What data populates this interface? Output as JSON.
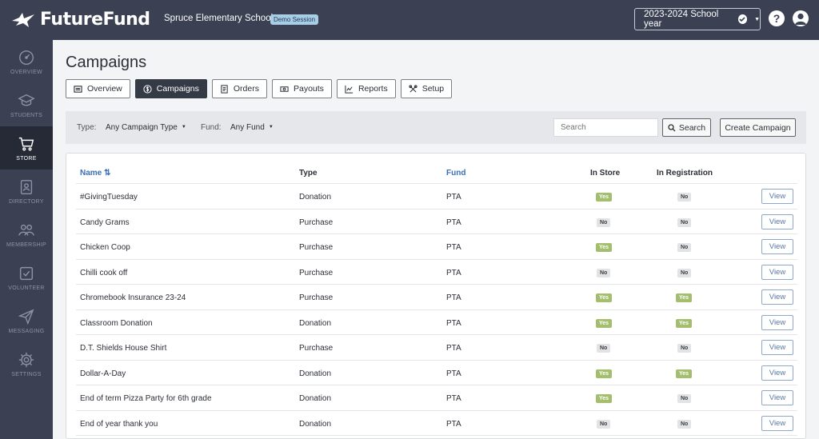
{
  "app": {
    "name": "FutureFund"
  },
  "header": {
    "school": "Spruce Elementary School",
    "demo_badge": "Demo Session",
    "year_select": "2023-2024 School year"
  },
  "sidebar": {
    "items": [
      {
        "label": "OVERVIEW",
        "icon": "gauge-icon"
      },
      {
        "label": "STUDENTS",
        "icon": "graduation-cap-icon"
      },
      {
        "label": "STORE",
        "icon": "cart-icon",
        "active": true
      },
      {
        "label": "DIRECTORY",
        "icon": "contact-card-icon"
      },
      {
        "label": "MEMBERSHIP",
        "icon": "people-icon"
      },
      {
        "label": "VOLUNTEER",
        "icon": "checkbox-icon"
      },
      {
        "label": "MESSAGING",
        "icon": "paper-plane-icon"
      },
      {
        "label": "SETTINGS",
        "icon": "gear-icon"
      }
    ]
  },
  "page": {
    "title": "Campaigns"
  },
  "tabs": [
    {
      "label": "Overview",
      "icon": "list-icon"
    },
    {
      "label": "Campaigns",
      "icon": "dollar-circle-icon",
      "active": true
    },
    {
      "label": "Orders",
      "icon": "document-icon"
    },
    {
      "label": "Payouts",
      "icon": "money-icon"
    },
    {
      "label": "Reports",
      "icon": "line-chart-icon"
    },
    {
      "label": "Setup",
      "icon": "tools-icon"
    }
  ],
  "filters": {
    "type_label": "Type:",
    "type_value": "Any Campaign Type",
    "fund_label": "Fund:",
    "fund_value": "Any Fund",
    "search_placeholder": "Search",
    "search_button": "Search",
    "create_button": "Create Campaign"
  },
  "table": {
    "headers": {
      "name": "Name",
      "type": "Type",
      "fund": "Fund",
      "in_store": "In Store",
      "in_registration": "In Registration"
    },
    "view_label": "View",
    "rows": [
      {
        "name": "#GivingTuesday",
        "type": "Donation",
        "fund": "PTA",
        "in_store": "Yes",
        "in_registration": "No"
      },
      {
        "name": "Candy Grams",
        "type": "Purchase",
        "fund": "PTA",
        "in_store": "No",
        "in_registration": "No"
      },
      {
        "name": "Chicken Coop",
        "type": "Purchase",
        "fund": "PTA",
        "in_store": "Yes",
        "in_registration": "No"
      },
      {
        "name": "Chilli cook off",
        "type": "Purchase",
        "fund": "PTA",
        "in_store": "No",
        "in_registration": "No"
      },
      {
        "name": "Chromebook Insurance 23-24",
        "type": "Purchase",
        "fund": "PTA",
        "in_store": "Yes",
        "in_registration": "Yes"
      },
      {
        "name": "Classroom Donation",
        "type": "Donation",
        "fund": "PTA",
        "in_store": "Yes",
        "in_registration": "Yes"
      },
      {
        "name": "D.T. Shields House Shirt",
        "type": "Purchase",
        "fund": "PTA",
        "in_store": "No",
        "in_registration": "No"
      },
      {
        "name": "Dollar-A-Day",
        "type": "Donation",
        "fund": "PTA",
        "in_store": "Yes",
        "in_registration": "Yes"
      },
      {
        "name": "End of term Pizza Party for 6th grade",
        "type": "Donation",
        "fund": "PTA",
        "in_store": "Yes",
        "in_registration": "No"
      },
      {
        "name": "End of year thank you",
        "type": "Donation",
        "fund": "PTA",
        "in_store": "No",
        "in_registration": "No"
      }
    ]
  }
}
